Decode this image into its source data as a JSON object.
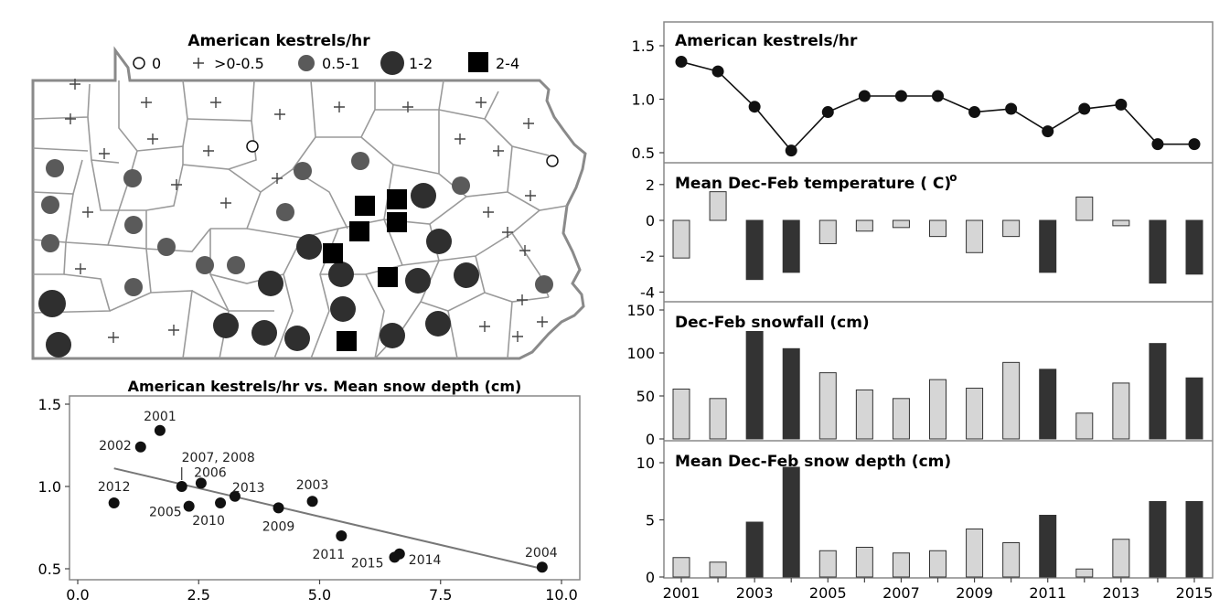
{
  "map": {
    "title": "American kestrels/hr",
    "legend": [
      {
        "symbol": "open-circle",
        "label": "0"
      },
      {
        "symbol": "plus",
        "label": ">0-0.5"
      },
      {
        "symbol": "small-gray-circle",
        "label": "0.5-1"
      },
      {
        "symbol": "large-dark-circle",
        "label": "1-2"
      },
      {
        "symbol": "black-square",
        "label": "2-4"
      }
    ],
    "colors": {
      "border": "#8a8a8a",
      "gray_circle": "#5a5a5a",
      "dark_circle": "#2f2f2f",
      "square": "#000000"
    }
  },
  "chart_data": [
    {
      "type": "scatter",
      "title": "American kestrels/hr vs. Mean snow depth (cm)",
      "xlabel": "",
      "ylabel": "",
      "xlim": [
        0,
        10
      ],
      "ylim": [
        0.45,
        1.55
      ],
      "xticks": [
        "0.0",
        "2.5",
        "5.0",
        "7.5",
        "10.0"
      ],
      "yticks": [
        "0.5",
        "1.0",
        "1.5"
      ],
      "points": [
        {
          "label": "2001",
          "x": 1.7,
          "y": 1.34
        },
        {
          "label": "2002",
          "x": 1.3,
          "y": 1.24
        },
        {
          "label": "2003",
          "x": 4.85,
          "y": 0.91
        },
        {
          "label": "2004",
          "x": 9.6,
          "y": 0.51
        },
        {
          "label": "2005",
          "x": 2.3,
          "y": 0.88
        },
        {
          "label": "2006",
          "x": 2.55,
          "y": 1.02
        },
        {
          "label": "2007, 2008",
          "x": 2.15,
          "y": 1.0
        },
        {
          "label": "2009",
          "x": 4.15,
          "y": 0.87
        },
        {
          "label": "2010",
          "x": 2.95,
          "y": 0.9
        },
        {
          "label": "2011",
          "x": 5.45,
          "y": 0.7
        },
        {
          "label": "2012",
          "x": 0.75,
          "y": 0.9
        },
        {
          "label": "2013",
          "x": 3.25,
          "y": 0.94
        },
        {
          "label": "2014",
          "x": 6.65,
          "y": 0.59
        },
        {
          "label": "2015",
          "x": 6.55,
          "y": 0.57
        }
      ],
      "trend": {
        "x": [
          0.75,
          9.6
        ],
        "y": [
          1.11,
          0.5
        ]
      }
    },
    {
      "type": "line",
      "title": "American kestrels/hr",
      "x": [
        2001,
        2002,
        2003,
        2004,
        2005,
        2006,
        2007,
        2008,
        2009,
        2010,
        2011,
        2012,
        2013,
        2014,
        2015
      ],
      "values": [
        1.35,
        1.26,
        0.93,
        0.52,
        0.88,
        1.03,
        1.03,
        1.03,
        0.88,
        0.91,
        0.7,
        0.91,
        0.95,
        0.58,
        0.58
      ],
      "ylim": [
        0.4,
        1.7
      ],
      "yticks": [
        "0.5",
        "1.0",
        "1.5"
      ]
    },
    {
      "type": "bar",
      "title": "Mean Dec-Feb temperature ( C)",
      "degree_symbol": "o",
      "x": [
        2001,
        2002,
        2003,
        2004,
        2005,
        2006,
        2007,
        2008,
        2009,
        2010,
        2011,
        2012,
        2013,
        2014,
        2015
      ],
      "values": [
        -2.1,
        1.6,
        -3.3,
        -2.9,
        -1.3,
        -0.6,
        -0.4,
        -0.9,
        -1.8,
        -0.9,
        -2.9,
        1.3,
        -0.3,
        -3.5,
        -3.0
      ],
      "dark": [
        false,
        false,
        true,
        true,
        false,
        false,
        false,
        false,
        false,
        false,
        true,
        false,
        false,
        true,
        true
      ],
      "ylim": [
        -4.2,
        2.6
      ],
      "yticks": [
        "2",
        "0",
        "-2",
        "-4"
      ]
    },
    {
      "type": "bar",
      "title": "Dec-Feb snowfall (cm)",
      "x": [
        2001,
        2002,
        2003,
        2004,
        2005,
        2006,
        2007,
        2008,
        2009,
        2010,
        2011,
        2012,
        2013,
        2014,
        2015
      ],
      "values": [
        58,
        47,
        125,
        105,
        77,
        57,
        47,
        69,
        59,
        89,
        81,
        30,
        65,
        111,
        71
      ],
      "dark": [
        false,
        false,
        true,
        true,
        false,
        false,
        false,
        false,
        false,
        false,
        true,
        false,
        false,
        true,
        true
      ],
      "ylim": [
        0,
        155
      ],
      "yticks": [
        "150",
        "100",
        "50",
        "0"
      ]
    },
    {
      "type": "bar",
      "title": "Mean Dec-Feb snow depth (cm)",
      "x": [
        2001,
        2002,
        2003,
        2004,
        2005,
        2006,
        2007,
        2008,
        2009,
        2010,
        2011,
        2012,
        2013,
        2014,
        2015
      ],
      "values": [
        1.7,
        1.3,
        4.8,
        9.6,
        2.3,
        2.6,
        2.1,
        2.3,
        4.2,
        3.0,
        5.4,
        0.7,
        3.3,
        6.6,
        6.6
      ],
      "dark": [
        false,
        false,
        true,
        true,
        false,
        false,
        false,
        false,
        false,
        false,
        true,
        false,
        false,
        true,
        true
      ],
      "ylim": [
        0,
        10.8
      ],
      "yticks": [
        "10",
        "5",
        "0"
      ],
      "xticks": [
        "2001",
        "2003",
        "2005",
        "2007",
        "2009",
        "2011",
        "2013",
        "2015"
      ]
    }
  ]
}
